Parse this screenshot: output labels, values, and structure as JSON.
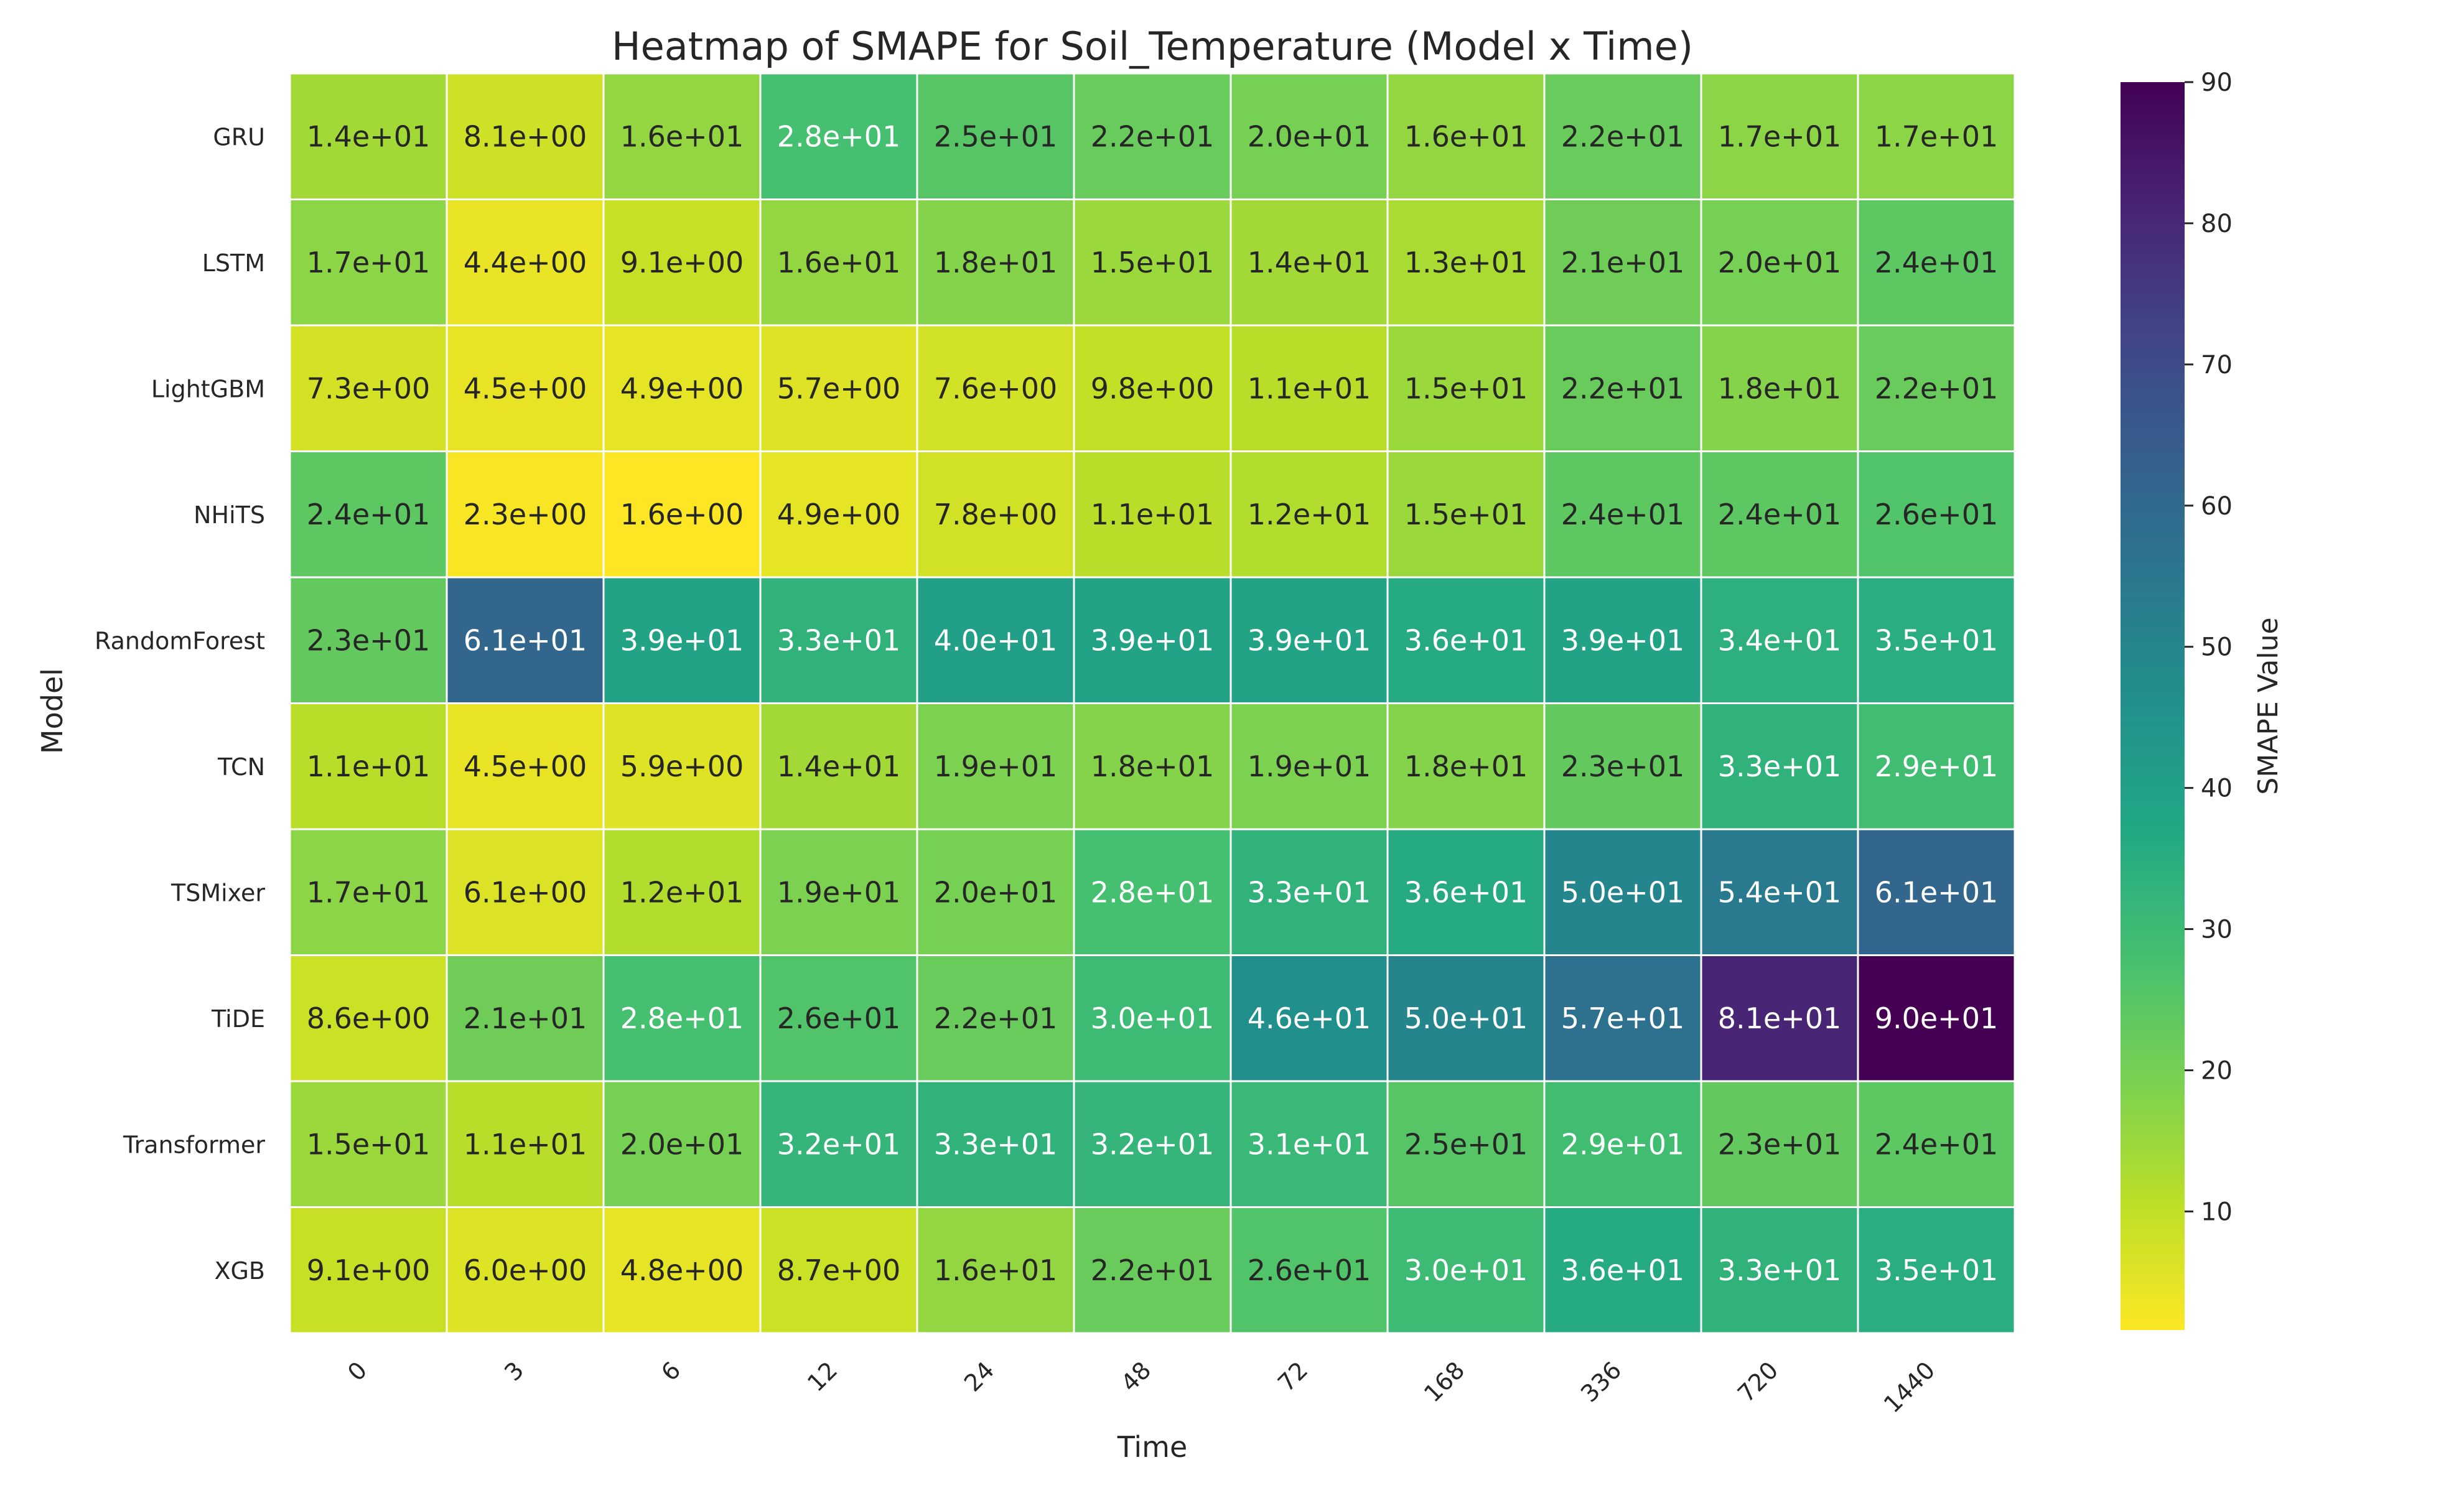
{
  "chart_data": {
    "type": "heatmap",
    "title": "Heatmap of SMAPE for Soil_Temperature (Model x Time)",
    "xlabel": "Time",
    "ylabel": "Model",
    "colorbar_label": "SMAPE Value",
    "colorbar_ticks": [
      "10",
      "20",
      "30",
      "40",
      "50",
      "60",
      "70",
      "80",
      "90"
    ],
    "colorbar_range": [
      1.6,
      90
    ],
    "colormap": "viridis_r",
    "x": [
      "0",
      "3",
      "6",
      "12",
      "24",
      "48",
      "72",
      "168",
      "336",
      "720",
      "1440"
    ],
    "y": [
      "GRU",
      "LSTM",
      "LightGBM",
      "NHiTS",
      "RandomForest",
      "TCN",
      "TSMixer",
      "TiDE",
      "Transformer",
      "XGB"
    ],
    "values": [
      [
        14,
        8.1,
        16,
        28,
        25,
        22,
        20,
        16,
        22,
        17,
        17
      ],
      [
        17,
        4.4,
        9.1,
        16,
        18,
        15,
        14,
        13,
        21,
        20,
        24
      ],
      [
        7.3,
        4.5,
        4.9,
        5.7,
        7.6,
        9.8,
        11,
        15,
        22,
        18,
        22
      ],
      [
        24,
        2.3,
        1.6,
        4.9,
        7.8,
        11,
        12,
        15,
        24,
        24,
        26
      ],
      [
        23,
        61,
        39,
        33,
        40,
        39,
        39,
        36,
        39,
        34,
        35
      ],
      [
        11,
        4.5,
        5.9,
        14,
        19,
        18,
        19,
        18,
        23,
        33,
        29
      ],
      [
        17,
        6.1,
        12,
        19,
        20,
        28,
        33,
        36,
        50,
        54,
        61
      ],
      [
        8.6,
        21,
        28,
        26,
        22,
        30,
        46,
        50,
        57,
        81,
        90
      ],
      [
        15,
        11,
        20,
        32,
        33,
        32,
        31,
        25,
        29,
        23,
        24
      ],
      [
        9.1,
        6.0,
        4.8,
        8.7,
        16,
        22,
        26,
        30,
        36,
        33,
        35
      ]
    ],
    "labels": [
      [
        "1.4e+01",
        "8.1e+00",
        "1.6e+01",
        "2.8e+01",
        "2.5e+01",
        "2.2e+01",
        "2.0e+01",
        "1.6e+01",
        "2.2e+01",
        "1.7e+01",
        "1.7e+01"
      ],
      [
        "1.7e+01",
        "4.4e+00",
        "9.1e+00",
        "1.6e+01",
        "1.8e+01",
        "1.5e+01",
        "1.4e+01",
        "1.3e+01",
        "2.1e+01",
        "2.0e+01",
        "2.4e+01"
      ],
      [
        "7.3e+00",
        "4.5e+00",
        "4.9e+00",
        "5.7e+00",
        "7.6e+00",
        "9.8e+00",
        "1.1e+01",
        "1.5e+01",
        "2.2e+01",
        "1.8e+01",
        "2.2e+01"
      ],
      [
        "2.4e+01",
        "2.3e+00",
        "1.6e+00",
        "4.9e+00",
        "7.8e+00",
        "1.1e+01",
        "1.2e+01",
        "1.5e+01",
        "2.4e+01",
        "2.4e+01",
        "2.6e+01"
      ],
      [
        "2.3e+01",
        "6.1e+01",
        "3.9e+01",
        "3.3e+01",
        "4.0e+01",
        "3.9e+01",
        "3.9e+01",
        "3.6e+01",
        "3.9e+01",
        "3.4e+01",
        "3.5e+01"
      ],
      [
        "1.1e+01",
        "4.5e+00",
        "5.9e+00",
        "1.4e+01",
        "1.9e+01",
        "1.8e+01",
        "1.9e+01",
        "1.8e+01",
        "2.3e+01",
        "3.3e+01",
        "2.9e+01"
      ],
      [
        "1.7e+01",
        "6.1e+00",
        "1.2e+01",
        "1.9e+01",
        "2.0e+01",
        "2.8e+01",
        "3.3e+01",
        "3.6e+01",
        "5.0e+01",
        "5.4e+01",
        "6.1e+01"
      ],
      [
        "8.6e+00",
        "2.1e+01",
        "2.8e+01",
        "2.6e+01",
        "2.2e+01",
        "3.0e+01",
        "4.6e+01",
        "5.0e+01",
        "5.7e+01",
        "8.1e+01",
        "9.0e+01"
      ],
      [
        "1.5e+01",
        "1.1e+01",
        "2.0e+01",
        "3.2e+01",
        "3.3e+01",
        "3.2e+01",
        "3.1e+01",
        "2.5e+01",
        "2.9e+01",
        "2.3e+01",
        "2.4e+01"
      ],
      [
        "9.1e+00",
        "6.0e+00",
        "4.8e+00",
        "8.7e+00",
        "1.6e+01",
        "2.2e+01",
        "2.6e+01",
        "3.0e+01",
        "3.6e+01",
        "3.3e+01",
        "3.5e+01"
      ]
    ],
    "grid": false,
    "legend": "colorbar-right"
  }
}
